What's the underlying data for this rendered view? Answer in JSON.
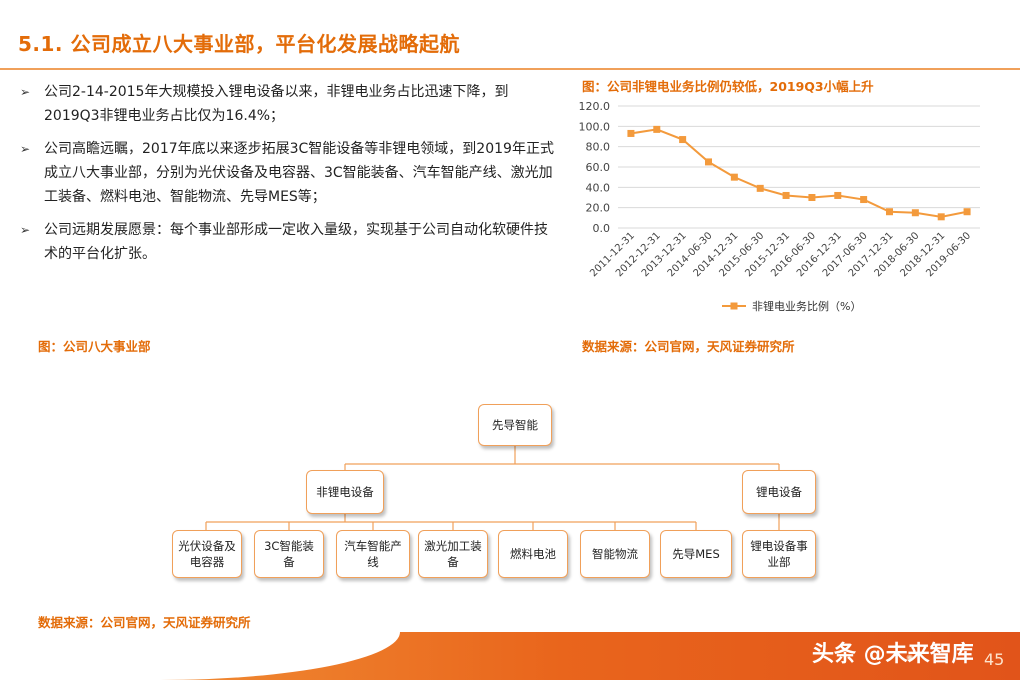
{
  "slide_title": "5.1. 公司成立八大事业部，平台化发展战略起航",
  "bullets": [
    "公司2-14-2015年大规模投入锂电设备以来，非锂电业务占比迅速下降，到2019Q3非锂电业务占比仅为16.4%；",
    "公司高瞻远瞩，2017年底以来逐步拓展3C智能设备等非锂电领域，到2019年正式成立八大事业部，分别为光伏设备及电容器、3C智能装备、汽车智能产线、激光加工装备、燃料电池、智能物流、先导MES等；",
    "公司远期发展愿景：每个事业部形成一定收入量级，实现基于公司自动化软硬件技术的平台化扩张。"
  ],
  "chart_title": "图：公司非锂电业务比例仍较低，2019Q3小幅上升",
  "chart_source": "数据来源：公司官网，天风证券研究所",
  "chart_data": {
    "type": "line",
    "title": "图：公司非锂电业务比例仍较低，2019Q3小幅上升",
    "categories": [
      "2011-12-31",
      "2012-12-31",
      "2013-12-31",
      "2014-06-30",
      "2014-12-31",
      "2015-06-30",
      "2015-12-31",
      "2016-06-30",
      "2016-12-31",
      "2017-06-30",
      "2017-12-31",
      "2018-06-30",
      "2018-12-31",
      "2019-06-30"
    ],
    "series": [
      {
        "name": "非锂电业务比例（%）",
        "values": [
          93,
          97,
          87,
          65,
          50,
          39,
          32,
          30,
          32,
          28,
          16,
          15,
          11,
          16
        ]
      }
    ],
    "yticks": [
      "0.0",
      "20.0",
      "40.0",
      "60.0",
      "80.0",
      "100.0",
      "120.0"
    ],
    "ylim": [
      0,
      120
    ],
    "grid": true,
    "legend_position": "bottom",
    "color": "#f39a3c"
  },
  "org_title": "图：公司八大事业部",
  "org_source": "数据来源：公司官网，天风证券研究所",
  "org": {
    "root": "先导智能",
    "level1": [
      "非锂电设备",
      "锂电设备"
    ],
    "nonlithium_children": [
      "光伏设备及电容器",
      "3C智能装备",
      "汽车智能产线",
      "激光加工装备",
      "燃料电池",
      "智能物流",
      "先导MES"
    ],
    "lithium_child": "锂电设备事业部"
  },
  "watermark": "头条 @未来智库",
  "page_number": "45",
  "brand_color": "#e36c09"
}
